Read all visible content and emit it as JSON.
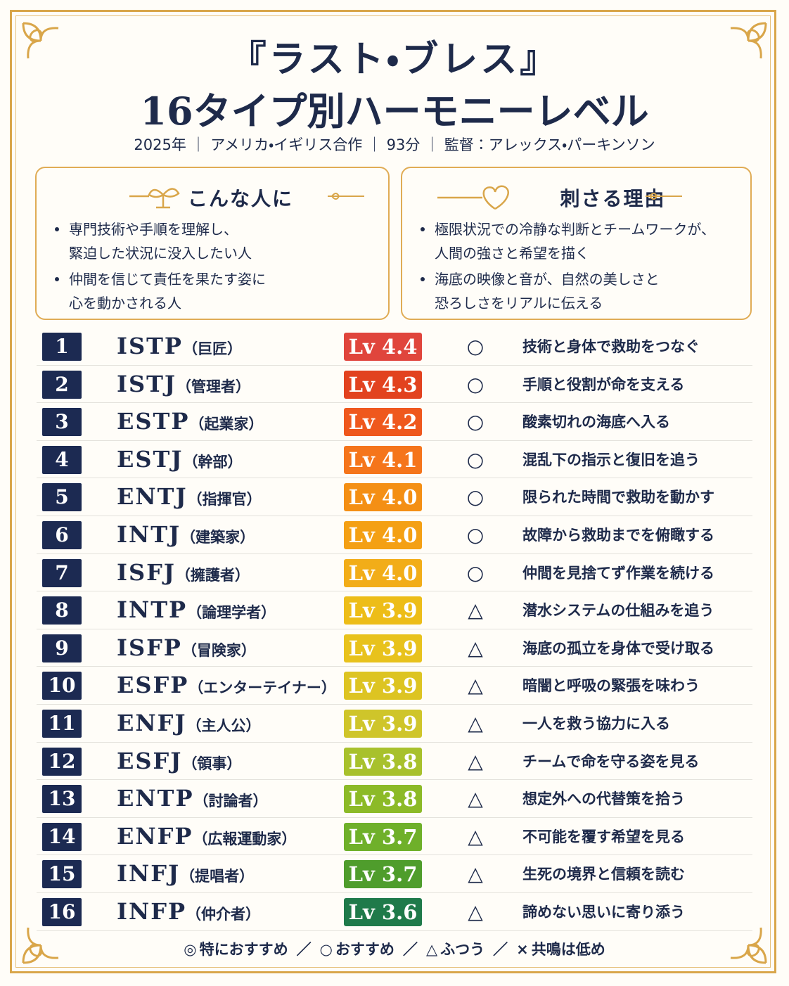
{
  "header": {
    "title_line1": "『ラスト・ブレス』",
    "title_line2": "16タイプ別ハーモニーレベル",
    "meta": "2025年 ｜ アメリカ・イギリス合作 ｜ 93分 ｜ 監督：アレックス・パーキンソン"
  },
  "panels": [
    {
      "title": "こんな人に",
      "items": [
        "専門技術や手順を理解し、\n緊迫した状況に没入したい人",
        "仲間を信じて責任を果たす姿に\n心を動かされる人"
      ]
    },
    {
      "title": "刺さる理由",
      "items": [
        "極限状況での冷静な判断とチームワークが、\n人間の強さと希望を描く",
        "海底の映像と音が、自然の美しさと\n恐ろしさをリアルに伝える"
      ]
    }
  ],
  "table": {
    "rows": [
      {
        "rank": 1,
        "type": "ISTP",
        "role": "（巨匠）",
        "level": "Lv 4.4",
        "color": "#e0453c",
        "mark": "○",
        "comment": "技術と身体で救助をつなぐ"
      },
      {
        "rank": 2,
        "type": "ISTJ",
        "role": "（管理者）",
        "level": "Lv 4.3",
        "color": "#e2421f",
        "mark": "○",
        "comment": "手順と役割が命を支える"
      },
      {
        "rank": 3,
        "type": "ESTP",
        "role": "（起業家）",
        "level": "Lv 4.2",
        "color": "#ef581d",
        "mark": "○",
        "comment": "酸素切れの海底へ入る"
      },
      {
        "rank": 4,
        "type": "ESTJ",
        "role": "（幹部）",
        "level": "Lv 4.1",
        "color": "#f5751b",
        "mark": "○",
        "comment": "混乱下の指示と復旧を追う"
      },
      {
        "rank": 5,
        "type": "ENTJ",
        "role": "（指揮官）",
        "level": "Lv 4.0",
        "color": "#f48f14",
        "mark": "○",
        "comment": "限られた時間で救助を動かす"
      },
      {
        "rank": 6,
        "type": "INTJ",
        "role": "（建築家）",
        "level": "Lv 4.0",
        "color": "#f4a014",
        "mark": "○",
        "comment": "故障から救助までを俯瞰する"
      },
      {
        "rank": 7,
        "type": "ISFJ",
        "role": "（擁護者）",
        "level": "Lv 4.0",
        "color": "#f2ad18",
        "mark": "○",
        "comment": "仲間を見捨てず作業を続ける"
      },
      {
        "rank": 8,
        "type": "INTP",
        "role": "（論理学者）",
        "level": "Lv 3.9",
        "color": "#edbd18",
        "mark": "△",
        "comment": "潜水システムの仕組みを追う"
      },
      {
        "rank": 9,
        "type": "ISFP",
        "role": "（冒険家）",
        "level": "Lv 3.9",
        "color": "#e8c21c",
        "mark": "△",
        "comment": "海底の孤立を身体で受け取る"
      },
      {
        "rank": 10,
        "type": "ESFP",
        "role": "（エンターテイナー）",
        "level": "Lv 3.9",
        "color": "#ddc422",
        "mark": "△",
        "comment": "暗闇と呼吸の緊張を味わう"
      },
      {
        "rank": 11,
        "type": "ENFJ",
        "role": "（主人公）",
        "level": "Lv 3.9",
        "color": "#cfc52a",
        "mark": "△",
        "comment": "一人を救う協力に入る"
      },
      {
        "rank": 12,
        "type": "ESFJ",
        "role": "（領事）",
        "level": "Lv 3.8",
        "color": "#a8c12c",
        "mark": "△",
        "comment": "チームで命を守る姿を見る"
      },
      {
        "rank": 13,
        "type": "ENTP",
        "role": "（討論者）",
        "level": "Lv 3.8",
        "color": "#8cba27",
        "mark": "△",
        "comment": "想定外への代替策を拾う"
      },
      {
        "rank": 14,
        "type": "ENFP",
        "role": "（広報運動家）",
        "level": "Lv 3.7",
        "color": "#6fb02a",
        "mark": "△",
        "comment": "不可能を覆す希望を見る"
      },
      {
        "rank": 15,
        "type": "INFJ",
        "role": "（提唱者）",
        "level": "Lv 3.7",
        "color": "#4f9d2c",
        "mark": "△",
        "comment": "生死の境界と信頼を読む"
      },
      {
        "rank": 16,
        "type": "INFP",
        "role": "（仲介者）",
        "level": "Lv 3.6",
        "color": "#1f7a4a",
        "mark": "△",
        "comment": "諦めない思いに寄り添う"
      }
    ]
  },
  "legend": {
    "separator": "／",
    "items": [
      {
        "symbol": "◎",
        "label": "特におすすめ"
      },
      {
        "symbol": "○",
        "label": "おすすめ"
      },
      {
        "symbol": "△",
        "label": "ふつう"
      },
      {
        "symbol": "×",
        "label": "共鳴は低め"
      }
    ]
  }
}
